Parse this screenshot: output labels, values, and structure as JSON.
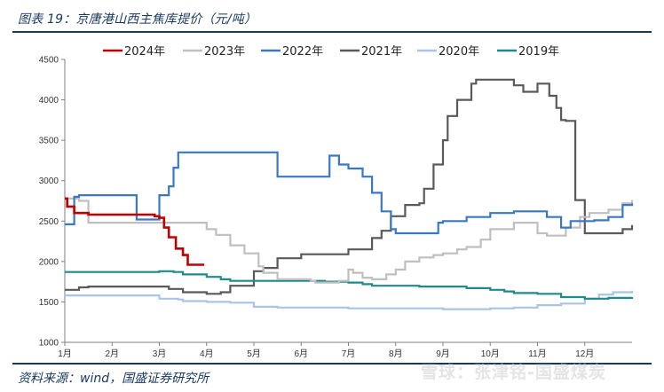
{
  "header": {
    "title": "图表 19：京唐港山西主焦库提价（元/吨）"
  },
  "footer": {
    "source": "资料来源：wind，国盛证券研究所",
    "watermark": "雪球：张津铭-国盛煤炭"
  },
  "colors": {
    "2024": "#c00000",
    "2023": "#bfbfbf",
    "2022": "#3a78c4",
    "2021": "#595959",
    "2020": "#a9c4e6",
    "2019": "#1f8a8a"
  },
  "chart_data": {
    "type": "line",
    "title": "图表 19：京唐港山西主焦库提价（元/吨）",
    "xlabel": "",
    "ylabel": "",
    "x_unit": "month (1 = Jan 1, 13 = year end)",
    "xlim": [
      1,
      13
    ],
    "ylim": [
      1000,
      4500
    ],
    "yticks": [
      "1000",
      "1500",
      "2000",
      "2500",
      "3000",
      "3500",
      "4000",
      "4500"
    ],
    "xticks": [
      {
        "x": 1,
        "label": "1月"
      },
      {
        "x": 2,
        "label": "2月"
      },
      {
        "x": 3,
        "label": "3月"
      },
      {
        "x": 4,
        "label": "4月"
      },
      {
        "x": 5,
        "label": "5月"
      },
      {
        "x": 6,
        "label": "6月"
      },
      {
        "x": 7,
        "label": "7月"
      },
      {
        "x": 8,
        "label": "8月"
      },
      {
        "x": 9,
        "label": "9月"
      },
      {
        "x": 10,
        "label": "10月"
      },
      {
        "x": 11,
        "label": "11月"
      },
      {
        "x": 12,
        "label": "12月"
      }
    ],
    "grid": false,
    "legend": "top",
    "series": [
      {
        "name": "2024年",
        "key": "2024",
        "x": [
          1,
          1.05,
          1.2,
          1.5,
          2.0,
          2.5,
          2.9,
          3.0,
          3.1,
          3.2,
          3.35,
          3.5,
          3.6,
          3.85,
          3.95
        ],
        "y": [
          2780,
          2680,
          2600,
          2580,
          2580,
          2580,
          2560,
          2540,
          2420,
          2300,
          2160,
          2080,
          1960,
          1960,
          1960
        ]
      },
      {
        "name": "2023年",
        "key": "2023",
        "x": [
          1,
          1.3,
          1.5,
          2.0,
          2.5,
          3.0,
          3.5,
          3.9,
          4.0,
          4.2,
          4.5,
          4.8,
          5.1,
          5.2,
          5.5,
          6.2,
          6.3,
          6.8,
          7.0,
          7.1,
          7.3,
          7.5,
          7.8,
          8.0,
          8.2,
          8.5,
          8.8,
          9.0,
          9.3,
          9.5,
          9.8,
          10.0,
          10.5,
          10.9,
          11.0,
          11.2,
          11.6,
          11.9,
          12.1,
          12.5,
          12.8,
          13
        ],
        "y": [
          2780,
          2750,
          2480,
          2480,
          2480,
          2480,
          2480,
          2480,
          2400,
          2330,
          2200,
          2100,
          1940,
          1860,
          1780,
          1760,
          1740,
          1760,
          1900,
          1860,
          1800,
          1780,
          1840,
          1900,
          2000,
          2050,
          2080,
          2100,
          2150,
          2180,
          2270,
          2400,
          2480,
          2480,
          2350,
          2320,
          2420,
          2550,
          2600,
          2640,
          2720,
          2760
        ]
      },
      {
        "name": "2022年",
        "key": "2022",
        "x": [
          1,
          1.1,
          1.2,
          1.3,
          1.5,
          2.0,
          2.5,
          2.52,
          2.8,
          3.0,
          3.2,
          3.3,
          3.4,
          4.0,
          4.5,
          5.0,
          5.4,
          5.5,
          6.0,
          6.5,
          6.6,
          6.8,
          7.0,
          7.3,
          7.5,
          7.7,
          7.9,
          8.0,
          8.5,
          8.8,
          8.9,
          9.0,
          9.5,
          10.0,
          10.5,
          10.8,
          11.0,
          11.2,
          11.5,
          11.7,
          12.0,
          12.2,
          12.5,
          12.8,
          13
        ],
        "y": [
          2460,
          2460,
          2800,
          2820,
          2820,
          2820,
          2820,
          2520,
          2520,
          2820,
          2930,
          3160,
          3350,
          3350,
          3350,
          3350,
          3350,
          3050,
          3050,
          3050,
          3310,
          3200,
          3150,
          3050,
          2850,
          2620,
          2400,
          2350,
          2350,
          2350,
          2480,
          2500,
          2550,
          2600,
          2620,
          2620,
          2620,
          2550,
          2420,
          2500,
          2500,
          2510,
          2550,
          2700,
          2720
        ]
      },
      {
        "name": "2021年",
        "key": "2021",
        "x": [
          1,
          1.3,
          1.5,
          2.0,
          2.5,
          3.0,
          3.2,
          3.5,
          4.0,
          4.3,
          4.5,
          5.0,
          5.2,
          5.5,
          6.0,
          6.5,
          7.0,
          7.5,
          7.7,
          7.9,
          8.2,
          8.5,
          8.6,
          8.8,
          9.0,
          9.1,
          9.3,
          9.6,
          9.7,
          9.9,
          10.0,
          10.3,
          10.5,
          10.7,
          11.0,
          11.1,
          11.25,
          11.4,
          11.5,
          11.6,
          11.8,
          12.0,
          12.5,
          12.8,
          13
        ],
        "y": [
          1650,
          1680,
          1690,
          1690,
          1690,
          1690,
          1660,
          1620,
          1600,
          1620,
          1700,
          1880,
          1920,
          2040,
          2090,
          2090,
          2150,
          2290,
          2380,
          2560,
          2700,
          2720,
          2900,
          3200,
          3500,
          3800,
          4000,
          4200,
          4250,
          4250,
          4250,
          4250,
          4180,
          4100,
          4200,
          4200,
          4050,
          3900,
          3750,
          3740,
          2760,
          2350,
          2350,
          2400,
          2450
        ]
      },
      {
        "name": "2020年",
        "key": "2020",
        "x": [
          1,
          1.5,
          2.0,
          2.5,
          2.9,
          3.0,
          3.4,
          3.5,
          4.0,
          4.5,
          5.0,
          5.5,
          6.0,
          6.5,
          7.0,
          7.5,
          8.0,
          8.5,
          9.0,
          9.5,
          10.0,
          10.5,
          11.0,
          11.5,
          12.0,
          12.3,
          12.6,
          13
        ],
        "y": [
          1580,
          1580,
          1580,
          1580,
          1580,
          1540,
          1530,
          1510,
          1500,
          1490,
          1440,
          1430,
          1430,
          1430,
          1420,
          1420,
          1420,
          1420,
          1410,
          1410,
          1420,
          1430,
          1460,
          1480,
          1540,
          1590,
          1620,
          1640
        ]
      },
      {
        "name": "2019年",
        "key": "2019",
        "x": [
          1,
          1.5,
          2.0,
          2.5,
          3.0,
          3.3,
          3.5,
          4.0,
          4.3,
          4.5,
          5.0,
          5.5,
          6.0,
          6.5,
          7.0,
          7.3,
          7.5,
          8.0,
          8.5,
          9.0,
          9.5,
          10.0,
          10.3,
          10.5,
          11.0,
          11.5,
          12.0,
          12.5,
          13
        ],
        "y": [
          1870,
          1870,
          1870,
          1870,
          1880,
          1870,
          1840,
          1810,
          1780,
          1760,
          1760,
          1760,
          1760,
          1750,
          1740,
          1720,
          1700,
          1700,
          1690,
          1690,
          1670,
          1650,
          1630,
          1610,
          1600,
          1560,
          1540,
          1550,
          1560
        ]
      }
    ]
  }
}
